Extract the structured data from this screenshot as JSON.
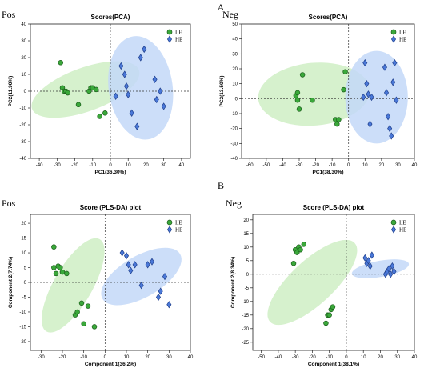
{
  "figure": {
    "section_a": "A",
    "section_b": "B"
  },
  "colors": {
    "LE_fill": "#3aa83a",
    "LE_stroke": "#1d5e1d",
    "LE_ellipse": "#cfeec4",
    "HE_fill": "#4a78d8",
    "HE_stroke": "#1f3f8c",
    "HE_ellipse": "#c3d8f8"
  },
  "chart_data": [
    {
      "type": "scatter",
      "panel_label": "Pos",
      "title": "Scores(PCA)",
      "xlabel": "PC1(36.30%)",
      "ylabel": "PC2(11.90%)",
      "xlim": [
        -45,
        45
      ],
      "ylim": [
        -40,
        40
      ],
      "xticks": [
        -40,
        -30,
        -20,
        -10,
        0,
        10,
        20,
        30,
        40
      ],
      "yticks": [
        -40,
        -30,
        -20,
        -10,
        0,
        10,
        20,
        30,
        40
      ],
      "grid": false,
      "legend": "top-right",
      "series": [
        {
          "name": "LE",
          "marker": "circle",
          "x": [
            -28,
            -27,
            -26,
            -25,
            -24,
            -18,
            -12,
            -11,
            -10,
            -8,
            -6,
            -3
          ],
          "y": [
            17,
            2,
            0,
            0,
            -1,
            -8,
            0,
            2,
            2,
            1,
            -15,
            -13
          ],
          "ellipse": {
            "cx": -14,
            "cy": 1,
            "rx": 32,
            "ry": 13,
            "angle": -20
          }
        },
        {
          "name": "HE",
          "marker": "diamond",
          "x": [
            3,
            6,
            8,
            9,
            10,
            12,
            15,
            17,
            19,
            25,
            26,
            28,
            30
          ],
          "y": [
            -3,
            15,
            10,
            3,
            -2,
            -13,
            -21,
            20,
            25,
            7,
            -5,
            0,
            -9
          ],
          "ellipse": {
            "cx": 17,
            "cy": 2,
            "rx": 18,
            "ry": 31,
            "angle": -8
          }
        }
      ]
    },
    {
      "type": "scatter",
      "panel_label": "Neg",
      "title": "Scores(PCA)",
      "xlabel": "PC1(38.30%)",
      "ylabel": "PC2(13.50%)",
      "xlim": [
        -65,
        40
      ],
      "ylim": [
        -40,
        50
      ],
      "xticks": [
        -60,
        -50,
        -40,
        -30,
        -20,
        -10,
        0,
        10,
        20,
        30,
        40
      ],
      "yticks": [
        -40,
        -30,
        -20,
        -10,
        0,
        10,
        20,
        30,
        40,
        50
      ],
      "grid": false,
      "legend": "top-right",
      "series": [
        {
          "name": "LE",
          "marker": "circle",
          "x": [
            -32,
            -31,
            -31,
            -30,
            -28,
            -22,
            -8,
            -7,
            -6,
            -3,
            -2
          ],
          "y": [
            2,
            4,
            -1,
            -7,
            16,
            -1,
            -14,
            -17,
            -14,
            6,
            18
          ],
          "ellipse": {
            "cx": -21,
            "cy": 3,
            "rx": 34,
            "ry": 21,
            "angle": -5
          }
        },
        {
          "name": "HE",
          "marker": "diamond",
          "x": [
            9,
            10,
            11,
            12,
            13,
            14,
            22,
            23,
            24,
            25,
            26,
            27,
            28,
            29
          ],
          "y": [
            1,
            24,
            10,
            3,
            -17,
            1,
            21,
            4,
            -12,
            -20,
            -25,
            11,
            24,
            -1
          ],
          "ellipse": {
            "cx": 17,
            "cy": 1,
            "rx": 19,
            "ry": 31,
            "angle": 0
          }
        }
      ]
    },
    {
      "type": "scatter",
      "panel_label": "Pos",
      "title": "Score (PLS-DA) plot",
      "xlabel": "Component 1(36.2%)",
      "ylabel": "Component 2(7.74%)",
      "xlim": [
        -35,
        40
      ],
      "ylim": [
        -23,
        23
      ],
      "xticks": [
        -30,
        -20,
        -10,
        0,
        10,
        20,
        30,
        40
      ],
      "yticks": [
        -20,
        -15,
        -10,
        -5,
        0,
        5,
        10,
        15,
        20
      ],
      "grid": false,
      "legend": "top-right",
      "series": [
        {
          "name": "LE",
          "marker": "circle",
          "x": [
            -24,
            -24,
            -23,
            -22,
            -21,
            -20,
            -18,
            -14,
            -13,
            -11,
            -10,
            -8,
            -5
          ],
          "y": [
            12,
            5,
            3,
            5.5,
            5,
            3.5,
            3,
            -11,
            -10,
            -7,
            -14,
            -8,
            -15
          ],
          "ellipse": {
            "cx": -15,
            "cy": -1,
            "rx": 25,
            "ry": 6.5,
            "angle": -60
          }
        },
        {
          "name": "HE",
          "marker": "diamond",
          "x": [
            8,
            10,
            11,
            12,
            14,
            17,
            20,
            22,
            25,
            26,
            28,
            30
          ],
          "y": [
            10,
            9,
            6,
            4,
            6,
            -1,
            6,
            7,
            -5,
            -3,
            2,
            -7.5
          ],
          "ellipse": {
            "cx": 17,
            "cy": 2,
            "rx": 21,
            "ry": 7,
            "angle": -30
          }
        }
      ]
    },
    {
      "type": "scatter",
      "panel_label": "Neg",
      "title": "Score (PLS-DA) plot",
      "xlabel": "Component 1(38.1%)",
      "ylabel": "Component 2(8.34%)",
      "xlim": [
        -55,
        40
      ],
      "ylim": [
        -28,
        22
      ],
      "xticks": [
        -50,
        -40,
        -30,
        -20,
        -10,
        0,
        10,
        20,
        30,
        40
      ],
      "yticks": [
        -25,
        -20,
        -15,
        -10,
        -5,
        0,
        5,
        10,
        15,
        20
      ],
      "grid": false,
      "legend": "top-right",
      "series": [
        {
          "name": "LE",
          "marker": "circle",
          "x": [
            -31,
            -30,
            -29,
            -28,
            -27,
            -25,
            -12,
            -11,
            -10,
            -9,
            -8
          ],
          "y": [
            4,
            9,
            8,
            10,
            9,
            11,
            -18,
            -15,
            -15,
            -13,
            -12
          ],
          "ellipse": {
            "cx": -20,
            "cy": -3,
            "rx": 34,
            "ry": 8,
            "angle": -43
          }
        },
        {
          "name": "HE",
          "marker": "diamond",
          "x": [
            11,
            12,
            13,
            14,
            15,
            23,
            24,
            25,
            26,
            27,
            28
          ],
          "y": [
            6,
            4,
            5,
            3,
            7,
            0,
            1,
            2,
            0,
            3,
            1
          ],
          "ellipse": {
            "cx": 20,
            "cy": 2,
            "rx": 17,
            "ry": 3,
            "angle": -10
          }
        }
      ]
    }
  ]
}
